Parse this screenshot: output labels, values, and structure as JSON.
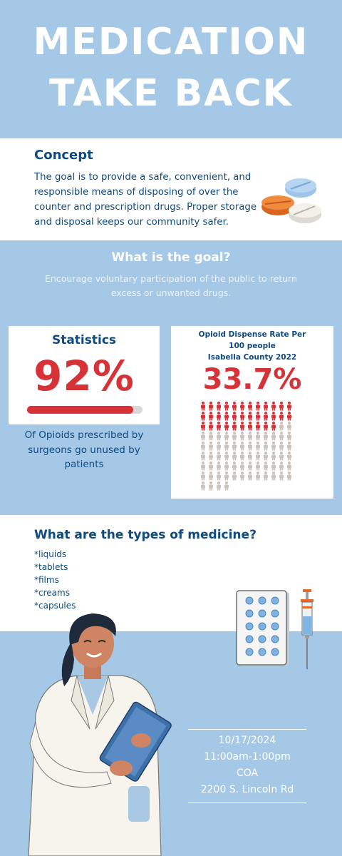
{
  "hero": {
    "line1": "MEDICATION",
    "line2": "TAKE BACK"
  },
  "concept": {
    "heading": "Concept",
    "body": "The goal is to provide a safe, convenient, and responsible means of disposing of over the counter and prescription drugs. Proper storage and disposal keeps our community safer."
  },
  "goal": {
    "heading": "What is the goal?",
    "body": "Encourage voluntary participation of the public to return excess or unwanted drugs."
  },
  "stats": {
    "label": "Statistics",
    "value": "92%",
    "bar_fraction": 0.92,
    "caption": "Of Opioids prescribed by surgeons go unused by patients"
  },
  "opioid": {
    "header_line1": "Opioid Dispense Rate Per",
    "header_line2": "100 people",
    "header_line3": "Isabella County 2022",
    "value": "33.7%",
    "highlighted_people": 34,
    "total_people": 100
  },
  "types": {
    "heading": "What are the types of medicine?",
    "items": [
      "*liquids",
      "*tablets",
      "*films",
      "*creams",
      "*capsules"
    ]
  },
  "event": {
    "date": "10/17/2024",
    "time": "11:00am-1:00pm",
    "place": "COA",
    "address": "2200 S. Lincoln Rd"
  },
  "colors": {
    "background": "#a5c8e6",
    "navy": "#0f4a80",
    "red": "#d63339",
    "grey_person": "#c9c2bd"
  }
}
